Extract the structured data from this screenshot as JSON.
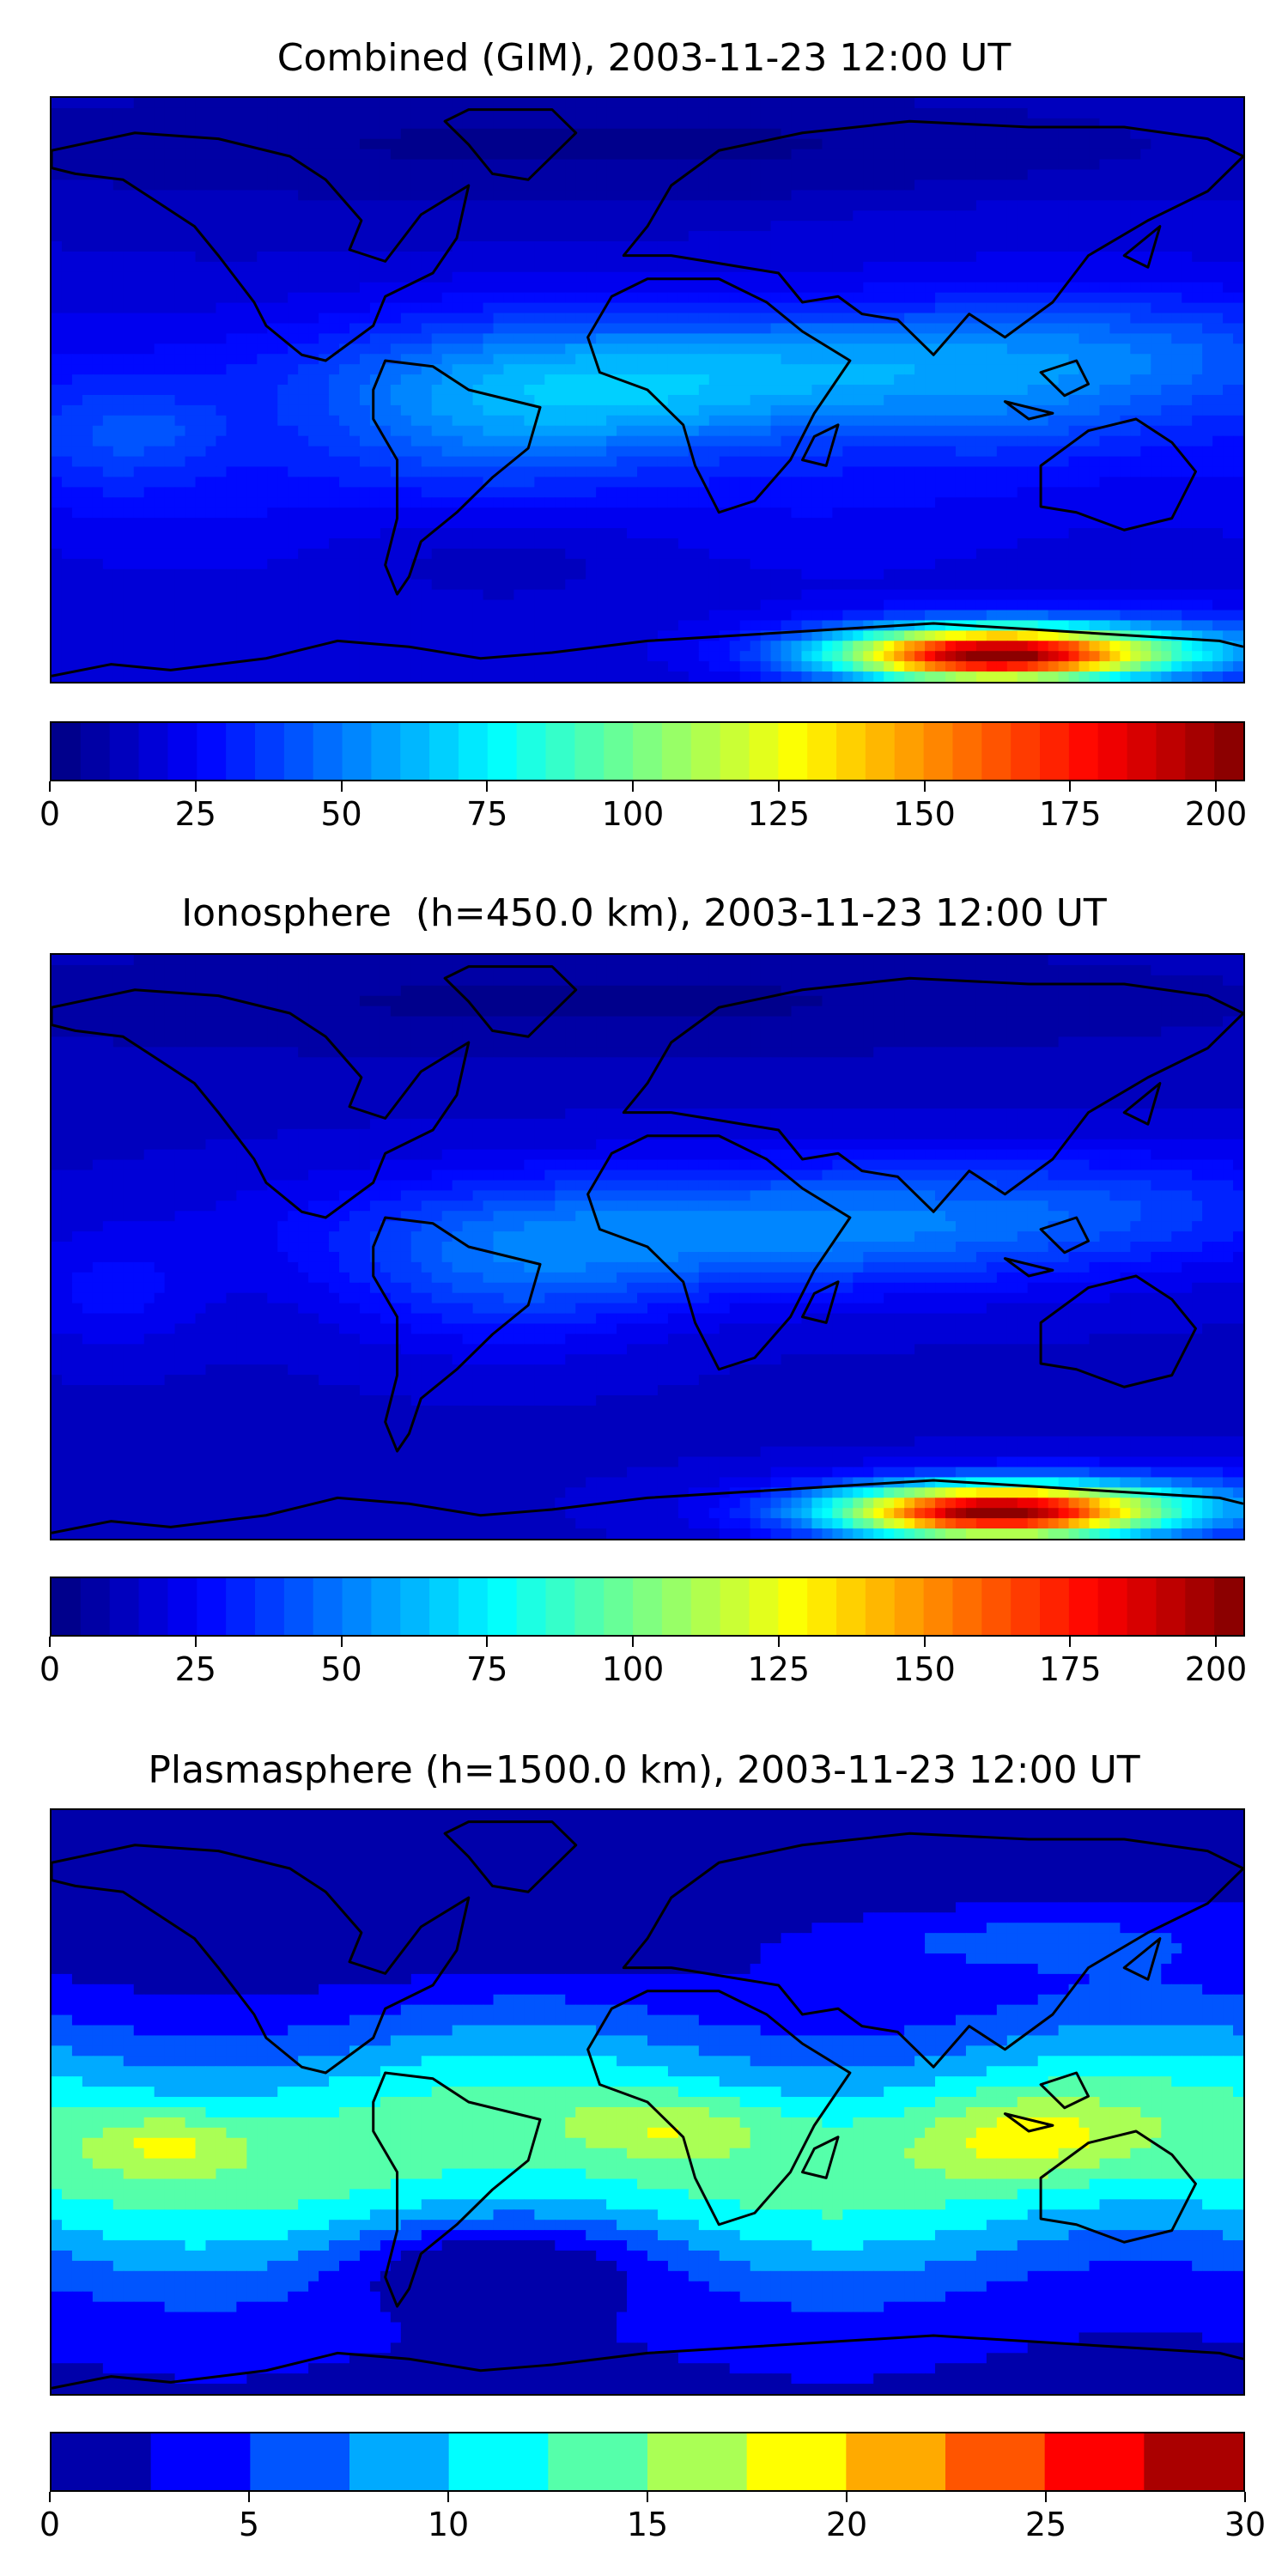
{
  "panels": [
    {
      "title": "Combined (GIM), 2003-11-23 12:00 UT",
      "colorbar_ticks": [
        "0",
        "25",
        "50",
        "75",
        "100",
        "125",
        "150",
        "175",
        "200"
      ],
      "vmin": 0,
      "vmax": 205,
      "levels": 41,
      "field": "combined"
    },
    {
      "title": "Ionosphere  (h=450.0 km), 2003-11-23 12:00 UT",
      "colorbar_ticks": [
        "0",
        "25",
        "50",
        "75",
        "100",
        "125",
        "150",
        "175",
        "200"
      ],
      "vmin": 0,
      "vmax": 205,
      "levels": 41,
      "field": "ionosphere"
    },
    {
      "title": "Plasmasphere (h=1500.0 km), 2003-11-23 12:00 UT",
      "colorbar_ticks": [
        "0",
        "5",
        "10",
        "15",
        "20",
        "25",
        "30"
      ],
      "vmin": 0,
      "vmax": 30,
      "levels": 12,
      "field": "plasmasphere"
    }
  ],
  "colormap": "jet",
  "coastline_color": "#000000"
}
